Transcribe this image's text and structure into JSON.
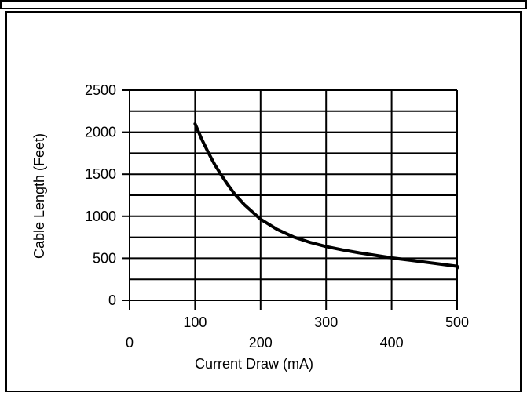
{
  "chart_data": {
    "type": "line",
    "title": "",
    "xlabel": "Current Draw (mA)",
    "ylabel": "Cable Length (Feet)",
    "xlim": [
      0,
      500
    ],
    "ylim": [
      0,
      2500
    ],
    "x_ticks_upper": [
      "100",
      "300",
      "500"
    ],
    "x_ticks_lower": [
      "0",
      "200",
      "400"
    ],
    "y_ticks": [
      "0",
      "500",
      "1000",
      "1500",
      "2000",
      "2500"
    ],
    "grid": true,
    "x": [
      100,
      110,
      120,
      130,
      140,
      150,
      160,
      175,
      200,
      225,
      250,
      275,
      300,
      325,
      350,
      375,
      400,
      425,
      450,
      475,
      500,
      520
    ],
    "y": [
      2100,
      1920,
      1760,
      1615,
      1490,
      1375,
      1270,
      1140,
      965,
      845,
      755,
      690,
      640,
      600,
      565,
      535,
      505,
      480,
      455,
      430,
      405,
      385
    ],
    "colors": {
      "line": "#000000",
      "grid": "#000000",
      "frame": "#000000"
    }
  }
}
